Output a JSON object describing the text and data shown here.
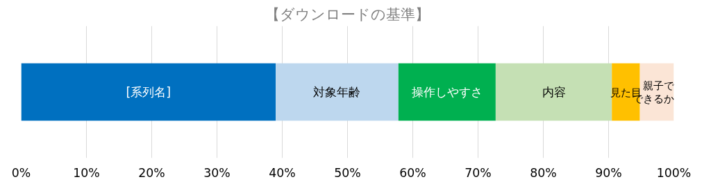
{
  "chart_data": {
    "type": "bar",
    "title": "【ダウンロードの基準】",
    "orientation": "horizontal",
    "stacked": true,
    "categories": [
      null
    ],
    "series": [
      {
        "name": "[系列名]",
        "color": "#0070c0",
        "values": [
          39.0
        ]
      },
      {
        "name": "対象年齢",
        "color": "#bdd7ee",
        "values": [
          18.8
        ]
      },
      {
        "name": "操作しやすさ",
        "color": "#00b050",
        "values": [
          14.9
        ]
      },
      {
        "name": "内容",
        "color": "#c5e0b4",
        "values": [
          17.8
        ]
      },
      {
        "name": "見た目",
        "color": "#ffc000",
        "values": [
          4.3
        ]
      },
      {
        "name": "親子でできるか",
        "color": "#fbe5d6",
        "values": [
          5.2
        ]
      }
    ],
    "xlim": [
      0,
      100
    ],
    "xticks": [
      {
        "value": 0,
        "label": "0%"
      },
      {
        "value": 10,
        "label": "10%"
      },
      {
        "value": 20,
        "label": "20%"
      },
      {
        "value": 30,
        "label": "30%"
      },
      {
        "value": 40,
        "label": "40%"
      },
      {
        "value": 50,
        "label": "50%"
      },
      {
        "value": 60,
        "label": "60%"
      },
      {
        "value": 70,
        "label": "70%"
      },
      {
        "value": 80,
        "label": "80%"
      },
      {
        "value": 90,
        "label": "90%"
      },
      {
        "value": 100,
        "label": "100%"
      }
    ],
    "grid": "x",
    "legend": false
  }
}
